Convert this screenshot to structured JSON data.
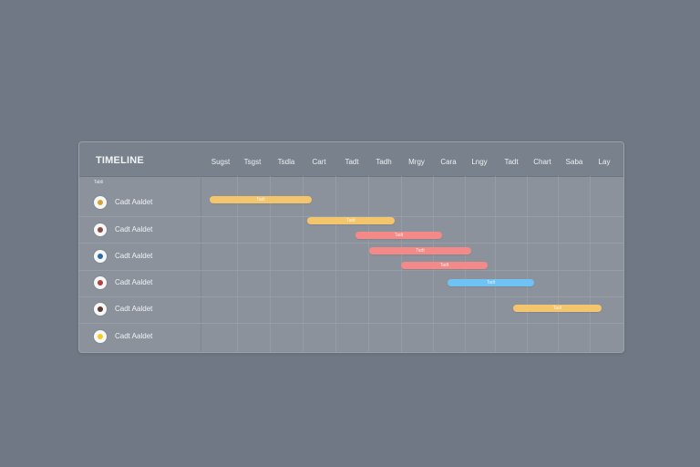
{
  "timeline": {
    "title": "TIMELINE",
    "subheader": "Tabli"
  },
  "columns": [
    "Sugst",
    "Tsgst",
    "Tsdla",
    "Cart",
    "Tadt",
    "Tadh",
    "Mrgy",
    "Cara",
    "Lngy",
    "Tadt",
    "Chart",
    "Saba",
    "Lay"
  ],
  "rows": [
    {
      "name": "Cadt Aaldet",
      "avatar_icon": "person-avatar-icon",
      "accent": "#d8a336"
    },
    {
      "name": "Cadt Aaldet",
      "avatar_icon": "person-avatar-icon",
      "accent": "#8b4b45"
    },
    {
      "name": "Cadt Aaldet",
      "avatar_icon": "person-avatar-icon",
      "accent": "#2d6da7"
    },
    {
      "name": "Cadt Aaldet",
      "avatar_icon": "person-avatar-icon",
      "accent": "#b63e3e"
    },
    {
      "name": "Cadt Aaldet",
      "avatar_icon": "person-avatar-icon",
      "accent": "#5b3c33"
    },
    {
      "name": "Cadt Aaldet",
      "avatar_icon": "person-avatar-icon",
      "accent": "#f2cf21"
    }
  ],
  "tasks": [
    {
      "label": "Tadt",
      "color": "#f3c56d"
    },
    {
      "label": "Tadt",
      "color": "#f3c56d"
    },
    {
      "label": "Tadt",
      "color": "#f38a88"
    },
    {
      "label": "Tadt",
      "color": "#f38a88"
    },
    {
      "label": "Tadt",
      "color": "#f38a88"
    },
    {
      "label": "Tadt",
      "color": "#6ec2f4"
    },
    {
      "label": "Tadt",
      "color": "#f3c56d"
    }
  ]
}
